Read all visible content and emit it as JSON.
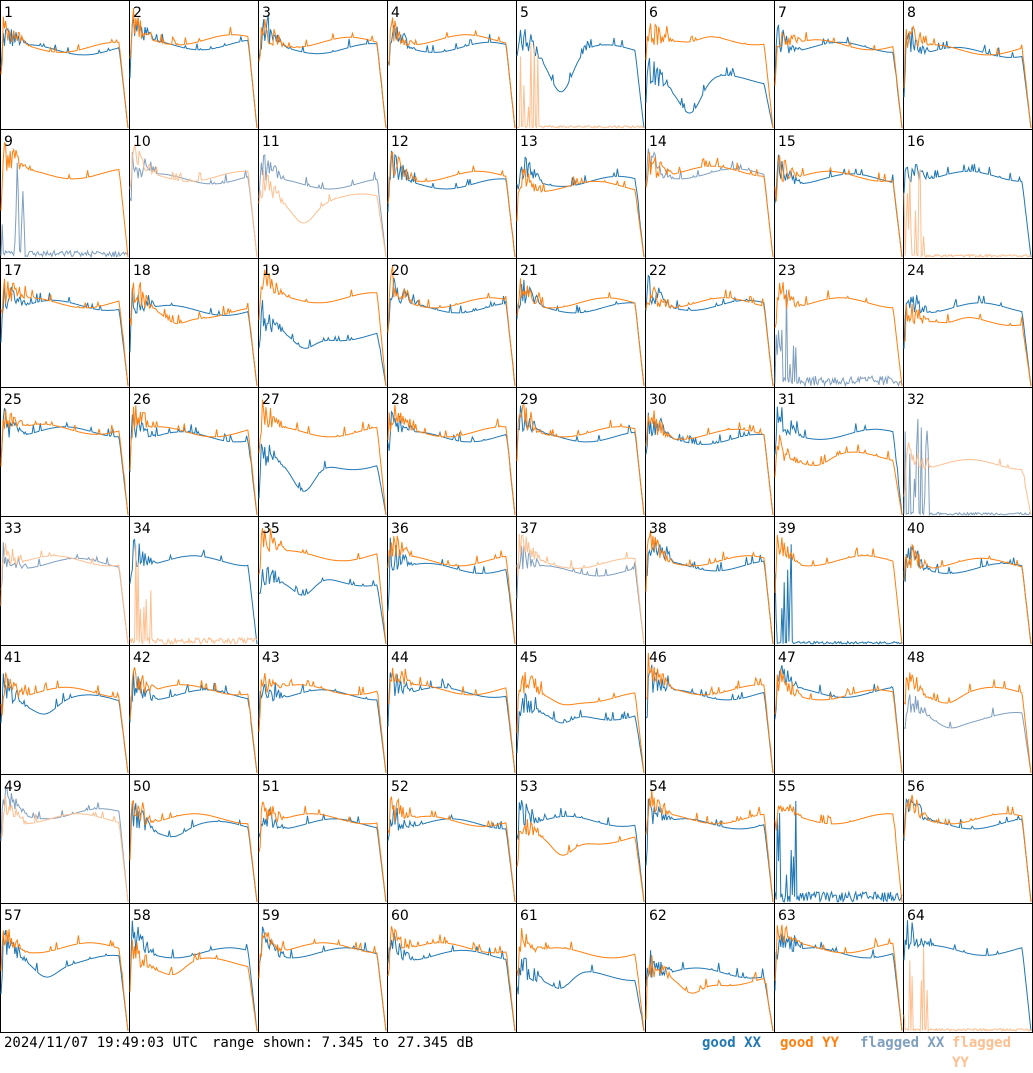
{
  "footer": {
    "timestamp": "2024/11/07 19:49:03 UTC",
    "range": "range shown: 7.345 to 27.345 dB"
  },
  "legend": {
    "good_xx": "good XX",
    "good_yy": "good YY",
    "flagged_xx": "flagged XX",
    "flagged_yy": "flagged YY"
  },
  "colors": {
    "good_xx": "#1f77b4",
    "good_yy": "#ff7f0e",
    "flagged_xx": "#7f9fbf",
    "flagged_yy": "#ffbf8f"
  },
  "chart_data": {
    "type": "line",
    "grid": "8x8 small-multiples",
    "ylim": [
      7.345,
      27.345
    ],
    "yunit": "dB",
    "panels": [
      {
        "id": "1",
        "xx": {
          "flag": "good",
          "level": 0.62,
          "dip": 0.0
        },
        "yy": {
          "flag": "good",
          "level": 0.64,
          "dip": 0.0
        }
      },
      {
        "id": "2",
        "xx": {
          "flag": "good",
          "level": 0.66,
          "dip": 0.0
        },
        "yy": {
          "flag": "good",
          "level": 0.7,
          "dip": 0.0
        }
      },
      {
        "id": "3",
        "xx": {
          "flag": "good",
          "level": 0.63,
          "dip": 0.0
        },
        "yy": {
          "flag": "good",
          "level": 0.68,
          "dip": 0.0
        }
      },
      {
        "id": "4",
        "xx": {
          "flag": "good",
          "level": 0.64,
          "dip": 0.0
        },
        "yy": {
          "flag": "good",
          "level": 0.7,
          "dip": 0.0
        }
      },
      {
        "id": "5",
        "xx": {
          "flag": "good",
          "level": 0.62,
          "dip": 0.3
        },
        "yy": {
          "flag": "flagged",
          "level": 0.02,
          "dip": 0.0
        }
      },
      {
        "id": "6",
        "xx": {
          "flag": "good",
          "level": 0.38,
          "dip": 0.25
        },
        "yy": {
          "flag": "good",
          "level": 0.7,
          "dip": 0.05
        }
      },
      {
        "id": "7",
        "xx": {
          "flag": "good",
          "level": 0.64,
          "dip": 0.0
        },
        "yy": {
          "flag": "good",
          "level": 0.66,
          "dip": 0.0
        }
      },
      {
        "id": "8",
        "xx": {
          "flag": "good",
          "level": 0.6,
          "dip": 0.0
        },
        "yy": {
          "flag": "good",
          "level": 0.62,
          "dip": 0.0
        }
      },
      {
        "id": "9",
        "xx": {
          "flag": "flagged",
          "level": 0.05,
          "dip": 0.0
        },
        "yy": {
          "flag": "good",
          "level": 0.66,
          "dip": 0.0
        }
      },
      {
        "id": "10",
        "xx": {
          "flag": "flagged",
          "level": 0.62,
          "dip": 0.0
        },
        "yy": {
          "flag": "flagged",
          "level": 0.64,
          "dip": 0.0
        }
      },
      {
        "id": "11",
        "xx": {
          "flag": "flagged",
          "level": 0.58,
          "dip": 0.0
        },
        "yy": {
          "flag": "flagged",
          "level": 0.46,
          "dip": 0.15
        }
      },
      {
        "id": "12",
        "xx": {
          "flag": "good",
          "level": 0.58,
          "dip": 0.0
        },
        "yy": {
          "flag": "good",
          "level": 0.64,
          "dip": 0.0
        }
      },
      {
        "id": "13",
        "xx": {
          "flag": "good",
          "level": 0.6,
          "dip": 0.0
        },
        "yy": {
          "flag": "good",
          "level": 0.56,
          "dip": 0.0
        }
      },
      {
        "id": "14",
        "xx": {
          "flag": "flagged",
          "level": 0.66,
          "dip": 0.0
        },
        "yy": {
          "flag": "good",
          "level": 0.68,
          "dip": 0.0
        }
      },
      {
        "id": "15",
        "xx": {
          "flag": "good",
          "level": 0.62,
          "dip": 0.0
        },
        "yy": {
          "flag": "good",
          "level": 0.64,
          "dip": 0.0
        }
      },
      {
        "id": "16",
        "xx": {
          "flag": "good",
          "level": 0.64,
          "dip": 0.0
        },
        "yy": {
          "flag": "flagged",
          "level": 0.02,
          "dip": 0.0
        }
      },
      {
        "id": "17",
        "xx": {
          "flag": "good",
          "level": 0.64,
          "dip": 0.0
        },
        "yy": {
          "flag": "good",
          "level": 0.66,
          "dip": 0.0
        }
      },
      {
        "id": "18",
        "xx": {
          "flag": "good",
          "level": 0.6,
          "dip": 0.0
        },
        "yy": {
          "flag": "good",
          "level": 0.58,
          "dip": 0.08
        }
      },
      {
        "id": "19",
        "xx": {
          "flag": "good",
          "level": 0.4,
          "dip": 0.12
        },
        "yy": {
          "flag": "good",
          "level": 0.7,
          "dip": 0.0
        }
      },
      {
        "id": "20",
        "xx": {
          "flag": "good",
          "level": 0.62,
          "dip": 0.0
        },
        "yy": {
          "flag": "good",
          "level": 0.66,
          "dip": 0.0
        }
      },
      {
        "id": "21",
        "xx": {
          "flag": "good",
          "level": 0.62,
          "dip": 0.0
        },
        "yy": {
          "flag": "good",
          "level": 0.66,
          "dip": 0.0
        }
      },
      {
        "id": "22",
        "xx": {
          "flag": "good",
          "level": 0.64,
          "dip": 0.0
        },
        "yy": {
          "flag": "good",
          "level": 0.66,
          "dip": 0.0
        }
      },
      {
        "id": "23",
        "xx": {
          "flag": "flagged",
          "level": 0.08,
          "dip": 0.0
        },
        "yy": {
          "flag": "good",
          "level": 0.66,
          "dip": 0.0
        }
      },
      {
        "id": "24",
        "xx": {
          "flag": "good",
          "level": 0.62,
          "dip": 0.0
        },
        "yy": {
          "flag": "good",
          "level": 0.52,
          "dip": 0.05
        }
      },
      {
        "id": "25",
        "xx": {
          "flag": "good",
          "level": 0.66,
          "dip": 0.0
        },
        "yy": {
          "flag": "good",
          "level": 0.68,
          "dip": 0.0
        }
      },
      {
        "id": "26",
        "xx": {
          "flag": "good",
          "level": 0.62,
          "dip": 0.0
        },
        "yy": {
          "flag": "good",
          "level": 0.66,
          "dip": 0.0
        }
      },
      {
        "id": "27",
        "xx": {
          "flag": "good",
          "level": 0.4,
          "dip": 0.25
        },
        "yy": {
          "flag": "good",
          "level": 0.66,
          "dip": 0.0
        }
      },
      {
        "id": "28",
        "xx": {
          "flag": "good",
          "level": 0.62,
          "dip": 0.0
        },
        "yy": {
          "flag": "good",
          "level": 0.66,
          "dip": 0.0
        }
      },
      {
        "id": "29",
        "xx": {
          "flag": "good",
          "level": 0.62,
          "dip": 0.0
        },
        "yy": {
          "flag": "good",
          "level": 0.66,
          "dip": 0.0
        }
      },
      {
        "id": "30",
        "xx": {
          "flag": "good",
          "level": 0.6,
          "dip": 0.0
        },
        "yy": {
          "flag": "good",
          "level": 0.64,
          "dip": 0.0
        }
      },
      {
        "id": "31",
        "xx": {
          "flag": "good",
          "level": 0.64,
          "dip": 0.0
        },
        "yy": {
          "flag": "good",
          "level": 0.46,
          "dip": 0.05
        }
      },
      {
        "id": "32",
        "xx": {
          "flag": "flagged",
          "level": 0.02,
          "dip": 0.0
        },
        "yy": {
          "flag": "flagged",
          "level": 0.4,
          "dip": 0.0
        }
      },
      {
        "id": "33",
        "xx": {
          "flag": "flagged",
          "level": 0.64,
          "dip": 0.0
        },
        "yy": {
          "flag": "flagged",
          "level": 0.66,
          "dip": 0.0
        }
      },
      {
        "id": "34",
        "xx": {
          "flag": "good",
          "level": 0.66,
          "dip": 0.0
        },
        "yy": {
          "flag": "flagged",
          "level": 0.05,
          "dip": 0.0
        }
      },
      {
        "id": "35",
        "xx": {
          "flag": "good",
          "level": 0.5,
          "dip": 0.15
        },
        "yy": {
          "flag": "good",
          "level": 0.7,
          "dip": 0.0
        }
      },
      {
        "id": "36",
        "xx": {
          "flag": "good",
          "level": 0.6,
          "dip": 0.0
        },
        "yy": {
          "flag": "good",
          "level": 0.66,
          "dip": 0.0
        }
      },
      {
        "id": "37",
        "xx": {
          "flag": "flagged",
          "level": 0.58,
          "dip": 0.0
        },
        "yy": {
          "flag": "flagged",
          "level": 0.64,
          "dip": 0.0
        }
      },
      {
        "id": "38",
        "xx": {
          "flag": "good",
          "level": 0.62,
          "dip": 0.0
        },
        "yy": {
          "flag": "good",
          "level": 0.66,
          "dip": 0.0
        }
      },
      {
        "id": "39",
        "xx": {
          "flag": "good",
          "level": 0.02,
          "dip": 0.0
        },
        "yy": {
          "flag": "good",
          "level": 0.66,
          "dip": 0.0
        }
      },
      {
        "id": "40",
        "xx": {
          "flag": "good",
          "level": 0.6,
          "dip": 0.0
        },
        "yy": {
          "flag": "good",
          "level": 0.64,
          "dip": 0.0
        }
      },
      {
        "id": "41",
        "xx": {
          "flag": "good",
          "level": 0.58,
          "dip": 0.08
        },
        "yy": {
          "flag": "good",
          "level": 0.64,
          "dip": 0.0
        }
      },
      {
        "id": "42",
        "xx": {
          "flag": "good",
          "level": 0.62,
          "dip": 0.0
        },
        "yy": {
          "flag": "good",
          "level": 0.66,
          "dip": 0.0
        }
      },
      {
        "id": "43",
        "xx": {
          "flag": "good",
          "level": 0.62,
          "dip": 0.0
        },
        "yy": {
          "flag": "good",
          "level": 0.66,
          "dip": 0.0
        }
      },
      {
        "id": "44",
        "xx": {
          "flag": "good",
          "level": 0.64,
          "dip": 0.0
        },
        "yy": {
          "flag": "good",
          "level": 0.66,
          "dip": 0.0
        }
      },
      {
        "id": "45",
        "xx": {
          "flag": "good",
          "level": 0.46,
          "dip": 0.1
        },
        "yy": {
          "flag": "good",
          "level": 0.6,
          "dip": 0.05
        }
      },
      {
        "id": "46",
        "xx": {
          "flag": "good",
          "level": 0.62,
          "dip": 0.0
        },
        "yy": {
          "flag": "good",
          "level": 0.66,
          "dip": 0.0
        }
      },
      {
        "id": "47",
        "xx": {
          "flag": "good",
          "level": 0.64,
          "dip": 0.0
        },
        "yy": {
          "flag": "good",
          "level": 0.62,
          "dip": 0.0
        }
      },
      {
        "id": "48",
        "xx": {
          "flag": "flagged",
          "level": 0.44,
          "dip": 0.05
        },
        "yy": {
          "flag": "good",
          "level": 0.64,
          "dip": 0.05
        }
      },
      {
        "id": "49",
        "xx": {
          "flag": "flagged",
          "level": 0.7,
          "dip": 0.0
        },
        "yy": {
          "flag": "flagged",
          "level": 0.66,
          "dip": 0.0
        }
      },
      {
        "id": "50",
        "xx": {
          "flag": "good",
          "level": 0.6,
          "dip": 0.05
        },
        "yy": {
          "flag": "good",
          "level": 0.66,
          "dip": 0.0
        }
      },
      {
        "id": "51",
        "xx": {
          "flag": "good",
          "level": 0.62,
          "dip": 0.0
        },
        "yy": {
          "flag": "good",
          "level": 0.66,
          "dip": 0.0
        }
      },
      {
        "id": "52",
        "xx": {
          "flag": "good",
          "level": 0.62,
          "dip": 0.0
        },
        "yy": {
          "flag": "good",
          "level": 0.64,
          "dip": 0.0
        }
      },
      {
        "id": "53",
        "xx": {
          "flag": "good",
          "level": 0.64,
          "dip": 0.0
        },
        "yy": {
          "flag": "good",
          "level": 0.5,
          "dip": 0.15
        }
      },
      {
        "id": "54",
        "xx": {
          "flag": "good",
          "level": 0.62,
          "dip": 0.0
        },
        "yy": {
          "flag": "good",
          "level": 0.66,
          "dip": 0.0
        }
      },
      {
        "id": "55",
        "xx": {
          "flag": "good",
          "level": 0.08,
          "dip": 0.0
        },
        "yy": {
          "flag": "good",
          "level": 0.66,
          "dip": 0.0
        }
      },
      {
        "id": "56",
        "xx": {
          "flag": "good",
          "level": 0.62,
          "dip": 0.0
        },
        "yy": {
          "flag": "good",
          "level": 0.66,
          "dip": 0.0
        }
      },
      {
        "id": "57",
        "xx": {
          "flag": "good",
          "level": 0.56,
          "dip": 0.1
        },
        "yy": {
          "flag": "good",
          "level": 0.66,
          "dip": 0.0
        }
      },
      {
        "id": "58",
        "xx": {
          "flag": "good",
          "level": 0.62,
          "dip": 0.0
        },
        "yy": {
          "flag": "good",
          "level": 0.54,
          "dip": 0.08
        }
      },
      {
        "id": "59",
        "xx": {
          "flag": "good",
          "level": 0.62,
          "dip": 0.0
        },
        "yy": {
          "flag": "good",
          "level": 0.66,
          "dip": 0.0
        }
      },
      {
        "id": "60",
        "xx": {
          "flag": "good",
          "level": 0.6,
          "dip": 0.0
        },
        "yy": {
          "flag": "good",
          "level": 0.66,
          "dip": 0.0
        }
      },
      {
        "id": "61",
        "xx": {
          "flag": "good",
          "level": 0.44,
          "dip": 0.12
        },
        "yy": {
          "flag": "good",
          "level": 0.62,
          "dip": 0.0
        }
      },
      {
        "id": "62",
        "xx": {
          "flag": "good",
          "level": 0.46,
          "dip": 0.0
        },
        "yy": {
          "flag": "good",
          "level": 0.4,
          "dip": 0.12
        }
      },
      {
        "id": "63",
        "xx": {
          "flag": "good",
          "level": 0.62,
          "dip": 0.0
        },
        "yy": {
          "flag": "good",
          "level": 0.66,
          "dip": 0.0
        }
      },
      {
        "id": "64",
        "xx": {
          "flag": "good",
          "level": 0.64,
          "dip": 0.0
        },
        "yy": {
          "flag": "flagged",
          "level": 0.02,
          "dip": 0.0
        }
      }
    ]
  }
}
